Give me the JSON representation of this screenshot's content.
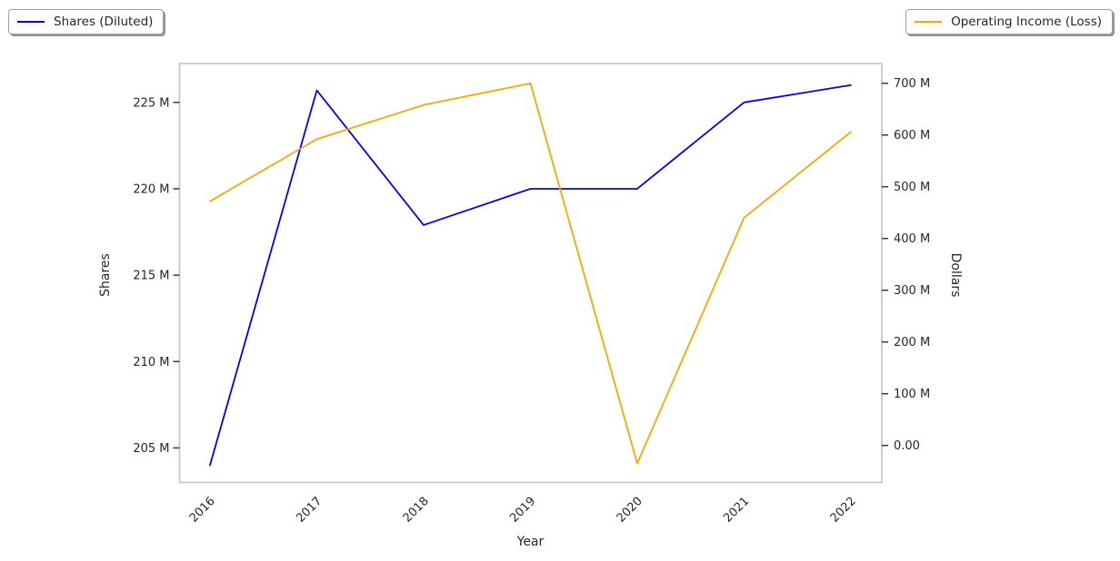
{
  "chart_data": {
    "type": "line",
    "title": "",
    "x": [
      2016,
      2017,
      2018,
      2019,
      2020,
      2021,
      2022
    ],
    "xlabel": "Year",
    "x_axis": {
      "label": "Year",
      "tick_labels": [
        "2016",
        "2017",
        "2018",
        "2019",
        "2020",
        "2021",
        "2022"
      ],
      "tick_rotation_deg": 45,
      "range": [
        2015.715,
        2022.29
      ]
    },
    "left_axis": {
      "label": "Shares",
      "ticks": [
        "205 M",
        "210 M",
        "215 M",
        "220 M",
        "225 M"
      ],
      "tick_values_millions": [
        205,
        210,
        215,
        220,
        225
      ],
      "range_millions": [
        203.0,
        227.25
      ]
    },
    "right_axis": {
      "label": "Dollars",
      "ticks": [
        "0.00",
        "100 M",
        "200 M",
        "300 M",
        "400 M",
        "500 M",
        "600 M",
        "700 M"
      ],
      "tick_values_millions": [
        0,
        100,
        200,
        300,
        400,
        500,
        600,
        700
      ],
      "range_millions": [
        -71.6,
        738.1
      ]
    },
    "series": [
      {
        "name": "Shares (Diluted)",
        "axis": "left",
        "color": "#0000ff",
        "values_millions": [
          204.0,
          225.7,
          217.9,
          220.0,
          220.0,
          225.0,
          226.0
        ]
      },
      {
        "name": "Operating Income (Loss)",
        "axis": "right",
        "color": "#ffa500",
        "values_millions": [
          472,
          592,
          658,
          700,
          -35,
          440,
          606
        ]
      }
    ],
    "legend": [
      {
        "label": "Shares (Diluted)",
        "position": "upper-left"
      },
      {
        "label": "Operating Income (Loss)",
        "position": "upper-right"
      }
    ],
    "grid": false,
    "style": {
      "background": "#ffffff",
      "spine_color": "#c9c9c9",
      "tick_color": "#3a3a3a",
      "text_color": "#262626",
      "line_width": 1.8
    }
  }
}
